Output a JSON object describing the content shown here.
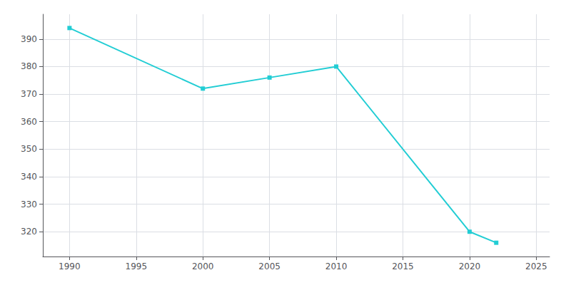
{
  "chart_data": {
    "type": "line",
    "x": [
      1990,
      2000,
      2005,
      2010,
      2020,
      2022
    ],
    "values": [
      394,
      372,
      376,
      380,
      320,
      316
    ],
    "color": "#22CDD4",
    "marker": "square",
    "xlim": [
      1988,
      2026
    ],
    "ylim": [
      311,
      399
    ],
    "xticks": [
      1990,
      1995,
      2000,
      2005,
      2010,
      2015,
      2020,
      2025
    ],
    "yticks": [
      320,
      330,
      340,
      350,
      360,
      370,
      380,
      390
    ],
    "grid": true
  }
}
